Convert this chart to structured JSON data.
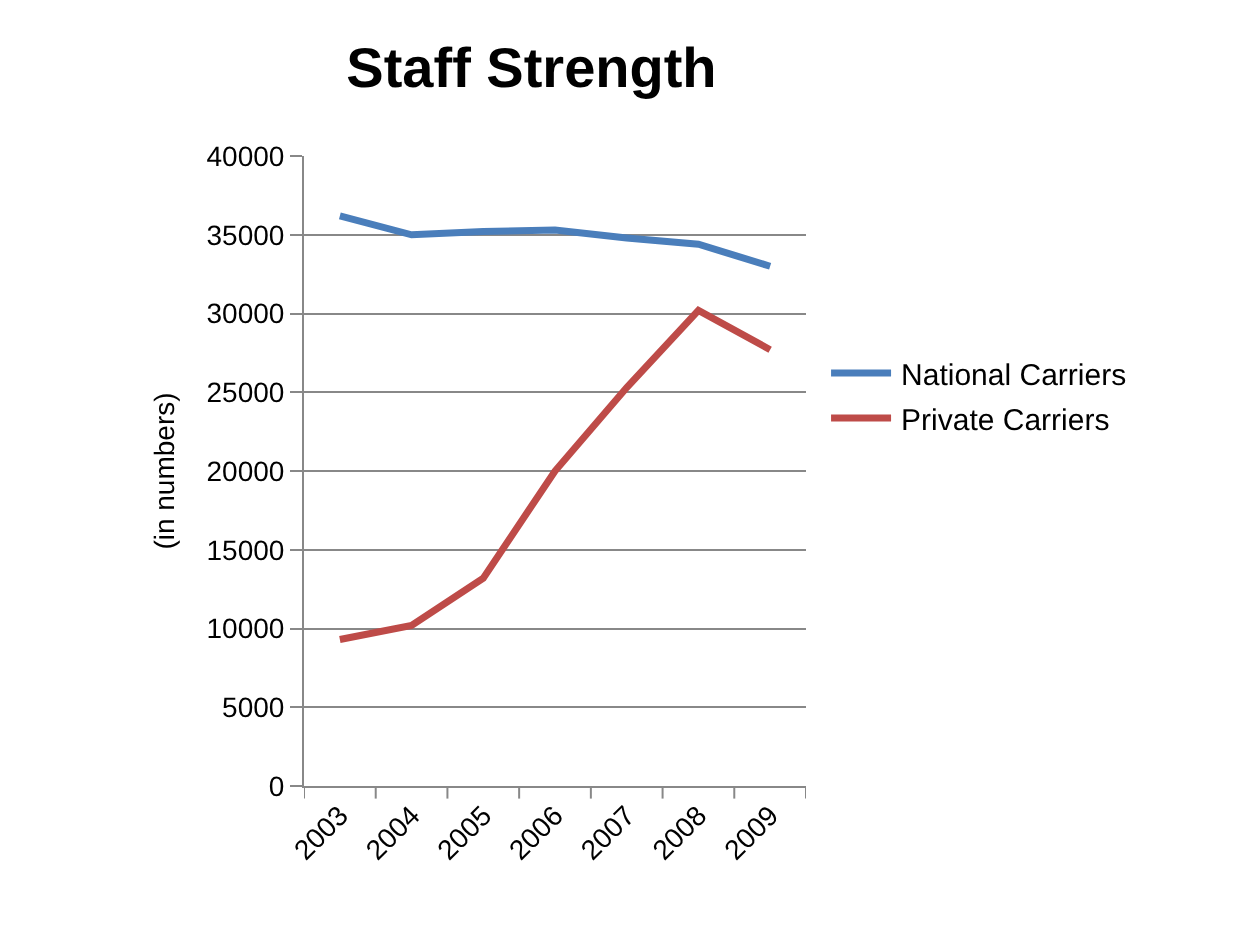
{
  "chart_data": {
    "type": "line",
    "title": "Staff Strength",
    "ylabel": "(in numbers)",
    "categories": [
      "2003",
      "2004",
      "2005",
      "2006",
      "2007",
      "2008",
      "2009"
    ],
    "series": [
      {
        "name": "National Carriers",
        "color": "#4a7ebb",
        "values": [
          36200,
          35000,
          35200,
          35300,
          34800,
          34400,
          33000
        ]
      },
      {
        "name": "Private Carriers",
        "color": "#be4b48",
        "values": [
          9300,
          10200,
          13200,
          20000,
          25300,
          30200,
          27700
        ]
      }
    ],
    "ylim": [
      0,
      40000
    ],
    "yticks": [
      0,
      5000,
      10000,
      15000,
      20000,
      25000,
      30000,
      35000,
      40000
    ],
    "grid": "y",
    "legend": "right",
    "marker": "none",
    "line_style": "solid"
  }
}
